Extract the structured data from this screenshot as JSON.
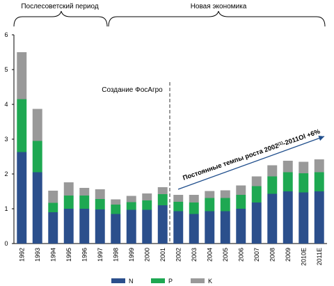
{
  "chart_data": {
    "type": "bar",
    "stacked": true,
    "categories": [
      "1992",
      "1993",
      "1994",
      "1995",
      "1996",
      "1997",
      "1998",
      "1999",
      "2000",
      "2001",
      "2002",
      "2003",
      "2004",
      "2005",
      "2006",
      "2007",
      "2008",
      "2009",
      "2010E",
      "2011E"
    ],
    "series": [
      {
        "name": "N",
        "color": "#2b4f8c",
        "values": [
          2.63,
          2.05,
          0.9,
          1.0,
          1.0,
          0.98,
          0.85,
          0.97,
          0.97,
          1.1,
          0.93,
          0.85,
          0.93,
          0.93,
          1.0,
          1.18,
          1.43,
          1.5,
          1.47,
          1.5
        ]
      },
      {
        "name": "P",
        "color": "#1ea852",
        "values": [
          1.52,
          0.9,
          0.27,
          0.38,
          0.38,
          0.3,
          0.27,
          0.22,
          0.27,
          0.32,
          0.27,
          0.33,
          0.38,
          0.38,
          0.4,
          0.47,
          0.5,
          0.55,
          0.55,
          0.55
        ]
      },
      {
        "name": "K",
        "color": "#999999",
        "values": [
          1.35,
          0.92,
          0.35,
          0.38,
          0.22,
          0.28,
          0.15,
          0.18,
          0.2,
          0.2,
          0.2,
          0.22,
          0.2,
          0.22,
          0.27,
          0.28,
          0.32,
          0.33,
          0.33,
          0.37
        ]
      }
    ],
    "ylim": [
      0,
      6
    ],
    "yticks": [
      0,
      1,
      2,
      3,
      4,
      5,
      6
    ],
    "grid": false,
    "legend": "bottom",
    "annotations": {
      "period_left": "Послесоветский период",
      "period_right": "Новая экономика",
      "divider_label": "Создание ФосАгро",
      "trend_label_prefix": "Постоянные темпы роста 2002",
      "trend_label_sup": "(1)",
      "trend_label_suffix": "-2011Ol  +6%"
    }
  }
}
